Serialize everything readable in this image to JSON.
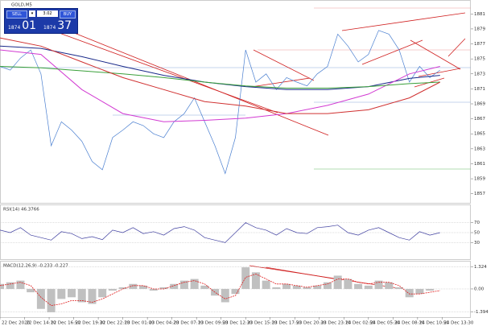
{
  "trade_panel": {
    "sell": "SELL",
    "buy": "BUY",
    "lots": "3.02",
    "sell_price": [
      "1874",
      "01"
    ],
    "buy_price": [
      "1874",
      "37"
    ]
  },
  "chart_data": [
    {
      "type": "line",
      "title": "GOLD,M5",
      "x": [
        0,
        1,
        2,
        3,
        4,
        5,
        6,
        7,
        8,
        9,
        10,
        11,
        12,
        13,
        14,
        15,
        16,
        17,
        18,
        19,
        20,
        21,
        22,
        23,
        24,
        25,
        26,
        27,
        28,
        29,
        30,
        31,
        32,
        33,
        34,
        35,
        36,
        37,
        38,
        39,
        40,
        41,
        42,
        43
      ],
      "xlim": [
        0,
        46
      ],
      "xticks": [
        {
          "value": 0,
          "label": "22 Dec 2020"
        },
        {
          "value": 2.4,
          "label": "22 Dec 14:10"
        },
        {
          "value": 4.8,
          "label": "22 Dec 16:50"
        },
        {
          "value": 7.2,
          "label": "22 Dec 19:30"
        },
        {
          "value": 9.6,
          "label": "22 Dec 22:10"
        },
        {
          "value": 12,
          "label": "23 Dec 01:00"
        },
        {
          "value": 14.4,
          "label": "23 Dec 04:20"
        },
        {
          "value": 16.8,
          "label": "23 Dec 07:10"
        },
        {
          "value": 19.2,
          "label": "23 Dec 09:50"
        },
        {
          "value": 21.6,
          "label": "23 Dec 12:30"
        },
        {
          "value": 24,
          "label": "23 Dec 15:10"
        },
        {
          "value": 26.4,
          "label": "23 Dec 17:50"
        },
        {
          "value": 28.8,
          "label": "23 Dec 20:30"
        },
        {
          "value": 31.2,
          "label": "23 Dec 23:10"
        },
        {
          "value": 33.6,
          "label": "24 Dec 02:50"
        },
        {
          "value": 36,
          "label": "24 Dec 05:30"
        },
        {
          "value": 38.4,
          "label": "24 Dec 08:10"
        },
        {
          "value": 40.8,
          "label": "24 Dec 10:50"
        },
        {
          "value": 43.2,
          "label": "24 Dec 13:30"
        }
      ],
      "ylim": [
        1856,
        1882
      ],
      "yticks": [
        1857,
        1859,
        1861,
        1863,
        1865,
        1867,
        1869,
        1871,
        1873,
        1875,
        1877,
        1879,
        1881
      ],
      "series": [
        {
          "color": "#4a7fd0",
          "width": 0.7,
          "values": [
            1874.0,
            1873.5,
            1875.1,
            1876.2,
            1873.0,
            1863.4,
            1866.6,
            1865.5,
            1864.0,
            1861.3,
            1860.2,
            1864.5,
            1865.5,
            1866.6,
            1866.1,
            1865.0,
            1864.5,
            1866.6,
            1867.7,
            1869.8,
            1866.6,
            1863.4,
            1859.7,
            1864.5,
            1876.2,
            1871.9,
            1873.0,
            1870.9,
            1872.5,
            1871.9,
            1871.4,
            1873.0,
            1874.0,
            1878.3,
            1876.7,
            1874.6,
            1875.6,
            1878.8,
            1878.3,
            1876.2,
            1871.9,
            1874.0,
            1872.5,
            1873.5
          ]
        },
        {
          "color": "#1a2a8a",
          "width": 1,
          "x": [
            0,
            4,
            8,
            12,
            16,
            20,
            24,
            28,
            32,
            36,
            40,
            43
          ],
          "values": [
            1876.7,
            1876.4,
            1875.3,
            1874.0,
            1872.8,
            1871.9,
            1871.3,
            1870.9,
            1870.9,
            1871.3,
            1872.4,
            1872.8
          ]
        },
        {
          "color": "#d23ad2",
          "width": 1,
          "x": [
            0,
            4,
            8,
            12,
            16,
            20,
            24,
            28,
            32,
            36,
            40,
            43
          ],
          "values": [
            1876.2,
            1875.6,
            1870.9,
            1867.7,
            1866.6,
            1866.8,
            1867.1,
            1867.7,
            1868.8,
            1870.3,
            1873.0,
            1874.0
          ]
        },
        {
          "color": "#3aa03a",
          "width": 1,
          "x": [
            0,
            4,
            8,
            12,
            16,
            20,
            24,
            28,
            32,
            36,
            40,
            43
          ],
          "values": [
            1874.0,
            1873.8,
            1873.4,
            1873.0,
            1872.5,
            1871.9,
            1871.4,
            1871.1,
            1871.1,
            1871.3,
            1871.7,
            1871.9
          ]
        },
        {
          "color": "#d03030",
          "width": 1,
          "x": [
            0,
            4,
            8,
            12,
            16,
            20,
            24,
            28,
            32,
            36,
            40,
            43
          ],
          "values": [
            1877.8,
            1876.7,
            1874.6,
            1872.5,
            1870.9,
            1869.3,
            1868.7,
            1867.7,
            1867.7,
            1868.2,
            1869.8,
            1871.9
          ]
        }
      ]
    },
    {
      "type": "line",
      "title": "RSI(14) 46.3766",
      "x": [
        0,
        1,
        2,
        3,
        4,
        5,
        6,
        7,
        8,
        9,
        10,
        11,
        12,
        13,
        14,
        15,
        16,
        17,
        18,
        19,
        20,
        21,
        22,
        23,
        24,
        25,
        26,
        27,
        28,
        29,
        30,
        31,
        32,
        33,
        34,
        35,
        36,
        37,
        38,
        39,
        40,
        41,
        42,
        43
      ],
      "xlim": [
        0,
        46
      ],
      "ylim": [
        0,
        100
      ],
      "yticks": [
        30,
        50,
        70
      ],
      "series": [
        {
          "color": "#4040a0",
          "width": 0.7,
          "values": [
            55,
            50,
            60,
            45,
            40,
            35,
            52,
            48,
            38,
            42,
            36,
            55,
            50,
            60,
            48,
            52,
            45,
            58,
            62,
            55,
            40,
            35,
            30,
            50,
            70,
            60,
            55,
            45,
            58,
            50,
            48,
            60,
            62,
            65,
            50,
            45,
            55,
            60,
            50,
            40,
            35,
            52,
            45,
            50
          ]
        }
      ]
    },
    {
      "type": "bar",
      "title": "MACD(12,26,9) -0.233 -0.227",
      "x": [
        0,
        1,
        2,
        3,
        4,
        5,
        6,
        7,
        8,
        9,
        10,
        11,
        12,
        13,
        14,
        15,
        16,
        17,
        18,
        19,
        20,
        21,
        22,
        23,
        24,
        25,
        26,
        27,
        28,
        29,
        30,
        31,
        32,
        33,
        34,
        35,
        36,
        37,
        38,
        39,
        40,
        41,
        42,
        43
      ],
      "xlim": [
        0,
        46
      ],
      "ylim": [
        -1.6,
        1.5
      ],
      "yticks": [
        1.324,
        {
          "value": 0,
          "label": "0.00"
        },
        -1.394
      ],
      "series": [
        {
          "kind": "bar",
          "color": "#c0c0c0",
          "values": [
            0.3,
            0.4,
            0.5,
            -0.2,
            -1.2,
            -1.4,
            -0.6,
            -0.5,
            -0.8,
            -0.9,
            -0.5,
            -0.1,
            0.1,
            0.3,
            0.2,
            -0.1,
            0.1,
            0.3,
            0.5,
            0.6,
            0.2,
            -0.4,
            -0.8,
            -0.3,
            1.3,
            1.0,
            0.5,
            0.1,
            0.3,
            0.2,
            0.1,
            0.2,
            0.4,
            0.8,
            0.6,
            0.3,
            0.2,
            0.5,
            0.4,
            0.1,
            -0.5,
            -0.3,
            -0.1,
            0.0
          ]
        },
        {
          "kind": "line",
          "color": "#e02020",
          "values": [
            0.2,
            0.3,
            0.4,
            0.2,
            -0.5,
            -1.0,
            -0.9,
            -0.7,
            -0.7,
            -0.8,
            -0.6,
            -0.3,
            0,
            0.2,
            0.2,
            0,
            0,
            0.2,
            0.4,
            0.5,
            0.3,
            -0.2,
            -0.6,
            -0.4,
            0.7,
            0.9,
            0.6,
            0.3,
            0.3,
            0.2,
            0.1,
            0.2,
            0.3,
            0.6,
            0.6,
            0.4,
            0.3,
            0.4,
            0.4,
            0.2,
            -0.3,
            -0.3,
            -0.2,
            -0.1
          ]
        }
      ]
    }
  ]
}
